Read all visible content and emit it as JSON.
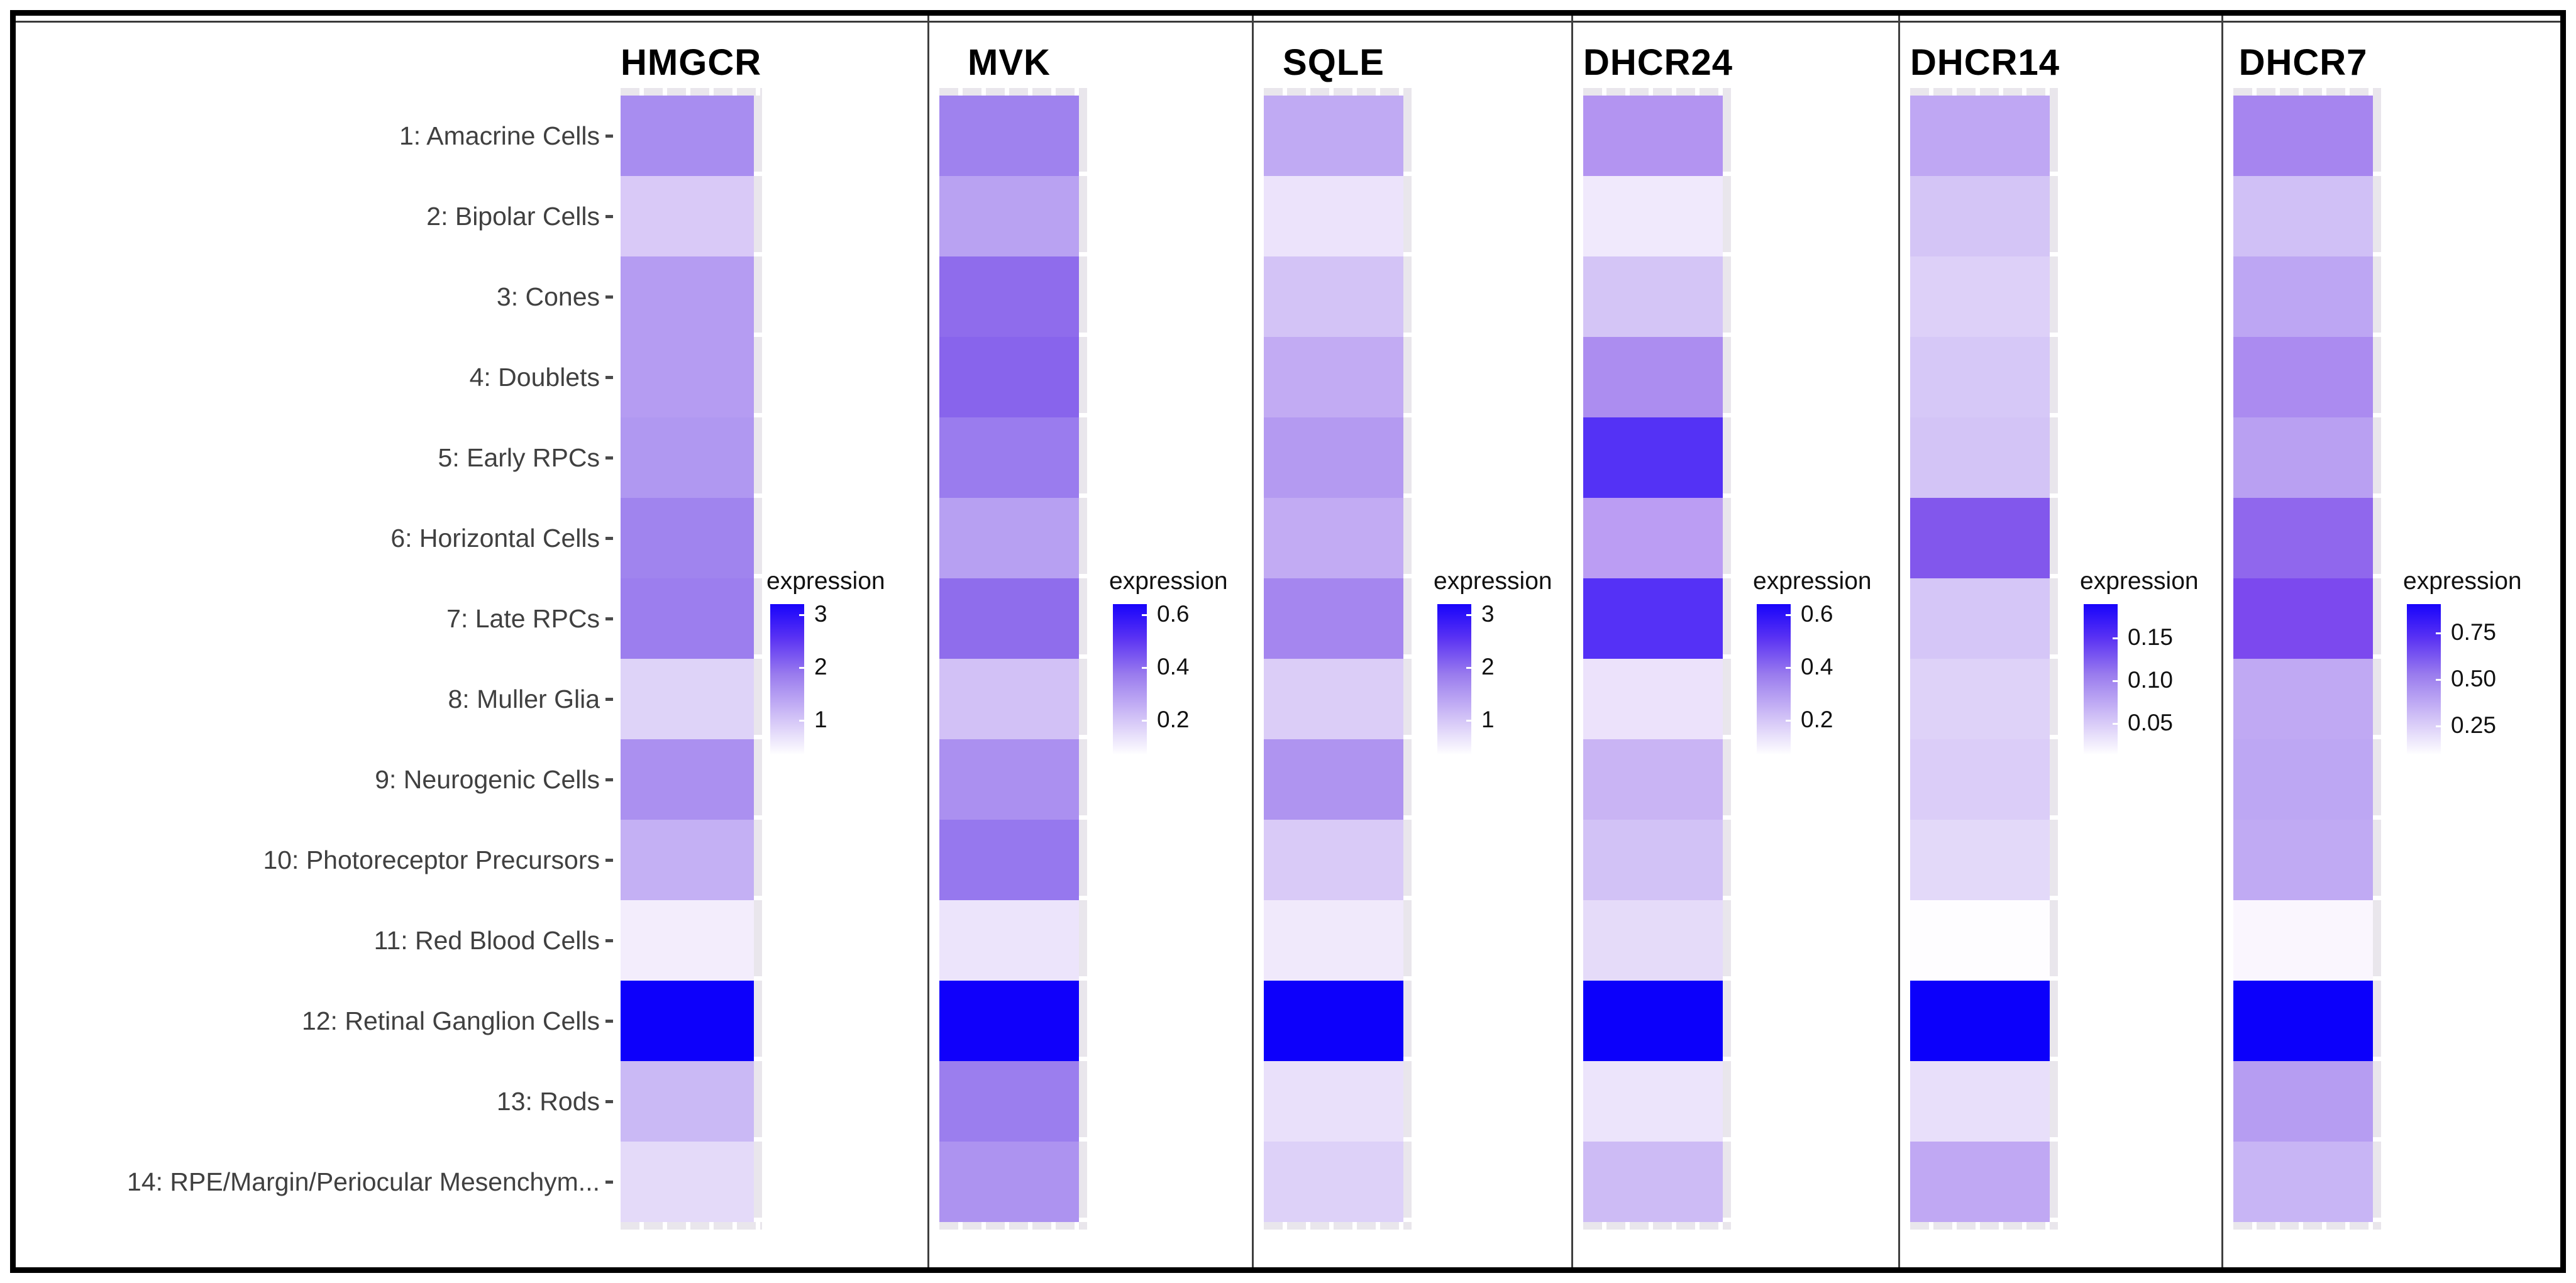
{
  "figure": {
    "legend_title": "expression",
    "row_labels": [
      "1: Amacrine Cells",
      "2: Bipolar Cells",
      "3: Cones",
      "4: Doublets",
      "5: Early RPCs",
      "6: Horizontal Cells",
      "7: Late RPCs",
      "8: Muller Glia",
      "9: Neurogenic Cells",
      "10: Photoreceptor Precursors",
      "11: Red Blood Cells",
      "12: Retinal Ganglion Cells",
      "13: Rods",
      "14: RPE/Margin/Periocular Mesenchym..."
    ],
    "colors": {
      "frame": "#000000",
      "divider": "#3f3f3f",
      "label_text": "#404040",
      "title_text": "#000000",
      "panel_strip": "#e9e6ec",
      "scale_top_blue": "#1804fb",
      "scale_bottom_white": "#ffffff"
    },
    "panels": [
      {
        "gene": "HMGCR",
        "cell_colors": [
          "#a88df0",
          "#d9c9f7",
          "#b59cf2",
          "#b59cf2",
          "#b098f1",
          "#a084ee",
          "#9c7eee",
          "#ded3f8",
          "#ab90f0",
          "#c4b0f4",
          "#f3edfc",
          "#0d00fb",
          "#cab9f5",
          "#e4daf9"
        ],
        "legend_ticks": [
          {
            "label": "3",
            "pos": 6.5
          },
          {
            "label": "2",
            "pos": 40
          },
          {
            "label": "1",
            "pos": 73.5
          }
        ]
      },
      {
        "gene": "MVK",
        "cell_colors": [
          "#9f82ee",
          "#b9a2f2",
          "#8f6cec",
          "#8864ec",
          "#9a7cee",
          "#b7a0f2",
          "#8f6dec",
          "#d2c1f6",
          "#ab90f0",
          "#9678ee",
          "#ece4fb",
          "#1000fb",
          "#9b7eee",
          "#ad93f0"
        ],
        "legend_ticks": [
          {
            "label": "0.6",
            "pos": 6.5
          },
          {
            "label": "0.4",
            "pos": 40
          },
          {
            "label": "0.2",
            "pos": 73.5
          }
        ]
      },
      {
        "gene": "SQLE",
        "cell_colors": [
          "#c0aaf3",
          "#ece3fb",
          "#d3c3f6",
          "#c2abf3",
          "#b49af1",
          "#c2abf3",
          "#a586ef",
          "#dbcdf7",
          "#af94f0",
          "#d9caf7",
          "#f0e9fb",
          "#0d00fb",
          "#e9e0fa",
          "#ddd1f8"
        ],
        "legend_ticks": [
          {
            "label": "3",
            "pos": 6.5
          },
          {
            "label": "2",
            "pos": 40
          },
          {
            "label": "1",
            "pos": 73.5
          }
        ]
      },
      {
        "gene": "DHCR24",
        "cell_colors": [
          "#b394f1",
          "#f0e9fc",
          "#d4c5f6",
          "#ac8df0",
          "#5432f5",
          "#bb9df3",
          "#5531f6",
          "#ece2fb",
          "#c9b4f4",
          "#d2c2f6",
          "#e5dbf9",
          "#0c00fb",
          "#ece4fb",
          "#cdbbf5"
        ],
        "legend_ticks": [
          {
            "label": "0.6",
            "pos": 6.5
          },
          {
            "label": "0.4",
            "pos": 40
          },
          {
            "label": "0.2",
            "pos": 73.5
          }
        ]
      },
      {
        "gene": "DHCR14",
        "cell_colors": [
          "#bfa7f3",
          "#d4c5f6",
          "#ddd0f8",
          "#d6c8f7",
          "#d3c4f6",
          "#8257ec",
          "#d5c6f7",
          "#ded2f8",
          "#dbcdf8",
          "#e3d9f9",
          "#fefdff",
          "#0c00fb",
          "#e8dffa",
          "#c0a8f3"
        ],
        "legend_ticks": [
          {
            "label": "0.15",
            "pos": 21
          },
          {
            "label": "0.10",
            "pos": 48.5
          },
          {
            "label": "0.05",
            "pos": 75.5
          }
        ]
      },
      {
        "gene": "DHCR7",
        "cell_colors": [
          "#a685ef",
          "#d0c0f6",
          "#bda6f3",
          "#ab8bf0",
          "#b9a0f2",
          "#9067ed",
          "#7c49ee",
          "#c0a9f3",
          "#bda7f3",
          "#c0aaf3",
          "#faf6fe",
          "#0c00fb",
          "#b69df2",
          "#c8b5f5"
        ],
        "legend_ticks": [
          {
            "label": "0.75",
            "pos": 18
          },
          {
            "label": "0.50",
            "pos": 47.5
          },
          {
            "label": "0.25",
            "pos": 77
          }
        ]
      }
    ]
  },
  "chart_data": {
    "type": "heatmap",
    "title": "",
    "legend_title": "expression",
    "legend_position": "right of each gene column",
    "categories": [
      "1: Amacrine Cells",
      "2: Bipolar Cells",
      "3: Cones",
      "4: Doublets",
      "5: Early RPCs",
      "6: Horizontal Cells",
      "7: Late RPCs",
      "8: Muller Glia",
      "9: Neurogenic Cells",
      "10: Photoreceptor Precursors",
      "11: Red Blood Cells",
      "12: Retinal Ganglion Cells",
      "13: Rods",
      "14: RPE/Margin/Periocular Mesenchym..."
    ],
    "series": [
      {
        "name": "HMGCR",
        "scale_ticks": [
          3,
          2,
          1
        ],
        "scale_max": 3.2,
        "values": [
          1.7,
          0.75,
          1.45,
          1.45,
          1.5,
          1.85,
          1.9,
          0.65,
          1.65,
          1.15,
          0.25,
          3.2,
          1.05,
          0.55
        ]
      },
      {
        "name": "MVK",
        "scale_ticks": [
          0.6,
          0.4,
          0.2
        ],
        "scale_max": 0.65,
        "values": [
          0.38,
          0.27,
          0.45,
          0.47,
          0.4,
          0.28,
          0.45,
          0.18,
          0.33,
          0.42,
          0.08,
          0.65,
          0.4,
          0.32
        ]
      },
      {
        "name": "SQLE",
        "scale_ticks": [
          3,
          2,
          1
        ],
        "scale_max": 3.2,
        "values": [
          1.25,
          0.45,
          0.95,
          1.2,
          1.45,
          1.2,
          1.75,
          0.8,
          1.4,
          0.85,
          0.35,
          3.2,
          0.5,
          0.75
        ]
      },
      {
        "name": "DHCR24",
        "scale_ticks": [
          0.6,
          0.4,
          0.2
        ],
        "scale_max": 0.65,
        "values": [
          0.3,
          0.06,
          0.18,
          0.33,
          0.55,
          0.27,
          0.55,
          0.08,
          0.22,
          0.19,
          0.11,
          0.65,
          0.08,
          0.2
        ]
      },
      {
        "name": "DHCR14",
        "scale_ticks": [
          0.15,
          0.1,
          0.05
        ],
        "scale_max": 0.19,
        "values": [
          0.075,
          0.055,
          0.045,
          0.05,
          0.055,
          0.13,
          0.05,
          0.042,
          0.047,
          0.035,
          0.003,
          0.19,
          0.03,
          0.073
        ]
      },
      {
        "name": "DHCR7",
        "scale_ticks": [
          0.75,
          0.5,
          0.25
        ],
        "scale_max": 0.95,
        "values": [
          0.52,
          0.28,
          0.38,
          0.48,
          0.42,
          0.62,
          0.72,
          0.37,
          0.38,
          0.37,
          0.04,
          0.95,
          0.42,
          0.33
        ]
      }
    ],
    "color_scale": {
      "low": "#ffffff",
      "high": "#1804fb",
      "comment": "white -> purple -> blue, per-panel independent scaling"
    },
    "grid": false
  }
}
